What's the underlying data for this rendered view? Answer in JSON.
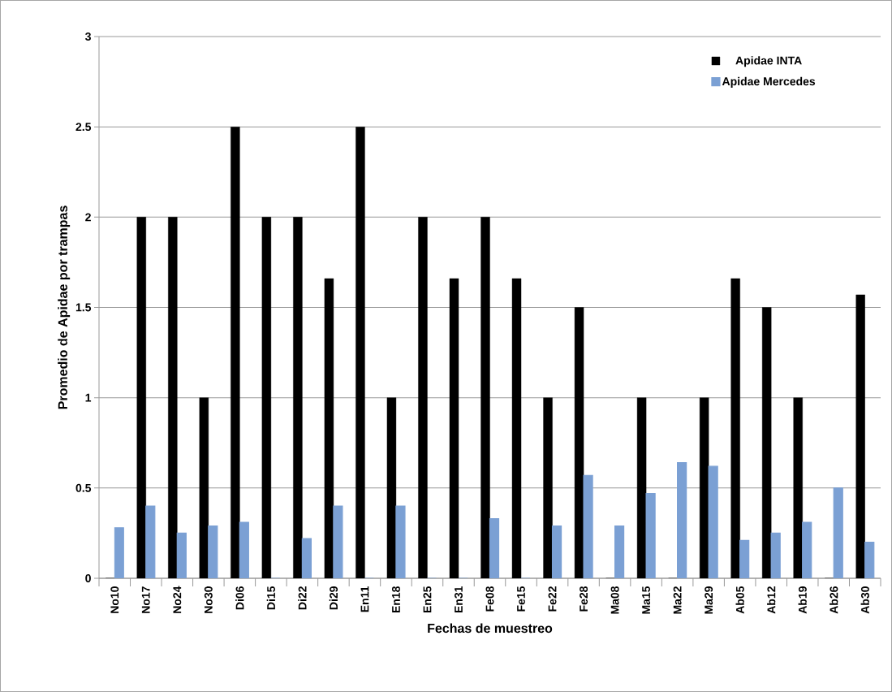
{
  "chart_data": {
    "type": "bar",
    "xlabel": "Fechas de muestreo",
    "ylabel": "Promedio de Apidae por trampas",
    "categories": [
      "No10",
      "No17",
      "No24",
      "No30",
      "Di06",
      "Di15",
      "Di22",
      "Di29",
      "En11",
      "En18",
      "En25",
      "En31",
      "Fe08",
      "Fe15",
      "Fe22",
      "Fe28",
      "Ma08",
      "Ma15",
      "Ma22",
      "Ma29",
      "Ab05",
      "Ab12",
      "Ab19",
      "Ab26",
      "Ab30"
    ],
    "series": [
      {
        "name": "Apidae INTA",
        "color": "#000000",
        "values": [
          0,
          2,
          2,
          1,
          2.5,
          2,
          2,
          1.66,
          2.5,
          1,
          2,
          1.66,
          2,
          1.66,
          1,
          1.5,
          0,
          1,
          0,
          1,
          1.66,
          1.5,
          1,
          0,
          1.57
        ]
      },
      {
        "name": "Apidae Mercedes",
        "color": "#7ba0d4",
        "values": [
          0.28,
          0.4,
          0.25,
          0.29,
          0.31,
          0,
          0.22,
          0.4,
          0,
          0.4,
          0,
          0,
          0.33,
          0,
          0.29,
          0.57,
          0.29,
          0.47,
          0.64,
          0.62,
          0.21,
          0.25,
          0.31,
          0.5,
          0.2
        ]
      }
    ],
    "ylim": [
      0,
      3
    ],
    "yticks": [
      0,
      0.5,
      1,
      1.5,
      2,
      2.5,
      3
    ],
    "grid": "y",
    "legend": "top right"
  }
}
